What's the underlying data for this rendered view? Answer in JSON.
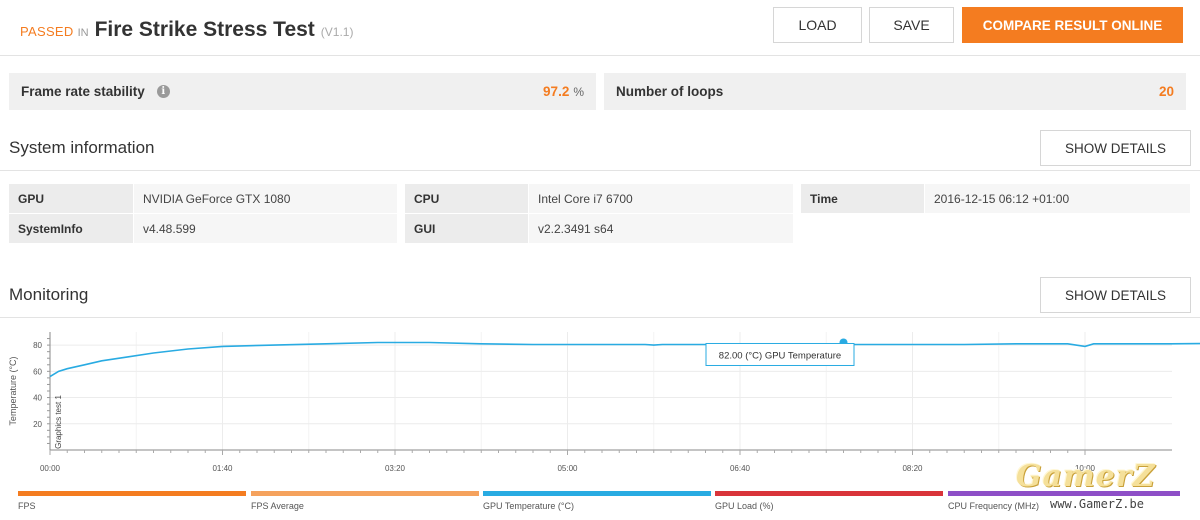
{
  "header": {
    "status": "PASSED",
    "in": "IN",
    "test_name": "Fire Strike Stress Test",
    "version": "(V1.1)",
    "load_label": "LOAD",
    "save_label": "SAVE",
    "compare_label": "COMPARE RESULT ONLINE"
  },
  "stats": {
    "stability_label": "Frame rate stability",
    "stability_value": "97.2",
    "stability_unit": "%",
    "loops_label": "Number of loops",
    "loops_value": "20"
  },
  "system": {
    "title": "System information",
    "details_label": "SHOW DETAILS",
    "rows": [
      {
        "k1": "GPU",
        "v1": "NVIDIA GeForce GTX 1080",
        "k2": "CPU",
        "v2": "Intel Core i7 6700",
        "k3": "Time",
        "v3": "2016-12-15 06:12 +01:00"
      },
      {
        "k1": "SystemInfo",
        "v1": "v4.48.599",
        "k2": "GUI",
        "v2": "v2.2.3491 s64"
      }
    ]
  },
  "monitoring": {
    "title": "Monitoring",
    "details_label": "SHOW DETAILS"
  },
  "chart_data": {
    "type": "line",
    "ylabel": "Temperature (°C)",
    "xlabel": "",
    "ylim": [
      0,
      90
    ],
    "yticks": [
      20,
      40,
      60,
      80
    ],
    "xticks": [
      "00:00",
      "01:40",
      "03:20",
      "05:00",
      "06:40",
      "08:20",
      "10:00"
    ],
    "marker_label": "Graphics test 1",
    "series": [
      {
        "name": "GPU Temperature (°C)",
        "color": "#29abe2",
        "x_seconds": [
          0,
          5,
          10,
          20,
          30,
          45,
          60,
          80,
          100,
          130,
          160,
          190,
          220,
          250,
          280,
          300,
          320,
          345,
          350,
          355,
          380,
          400,
          420,
          440,
          460,
          480,
          500,
          530,
          560,
          590,
          600,
          605,
          620,
          640,
          650,
          700,
          760,
          810,
          860,
          920,
          980,
          1025
        ],
        "values": [
          56,
          60,
          62,
          65,
          68,
          71,
          74,
          77,
          79,
          80,
          81,
          82,
          82,
          81,
          80.5,
          80.5,
          80.5,
          80.5,
          80,
          80.5,
          80.5,
          80,
          80.5,
          80,
          80.5,
          80.5,
          80.5,
          80.5,
          81,
          81,
          79,
          81,
          81,
          81,
          81,
          81.5,
          81.5,
          82,
          82,
          82,
          82,
          82
        ]
      }
    ],
    "tooltip": "82.00 (°C) GPU Temperature",
    "legend": [
      "FPS",
      "FPS Average",
      "GPU Temperature (°C)",
      "GPU Load (%)",
      "CPU Frequency (MHz)"
    ],
    "legend_colors": [
      "#f47c20",
      "#f5a25d",
      "#29abe2",
      "#d9343a",
      "#8e4fc7"
    ]
  },
  "watermark": {
    "logo": "GamerZ",
    "url": "www.GamerZ.be"
  }
}
